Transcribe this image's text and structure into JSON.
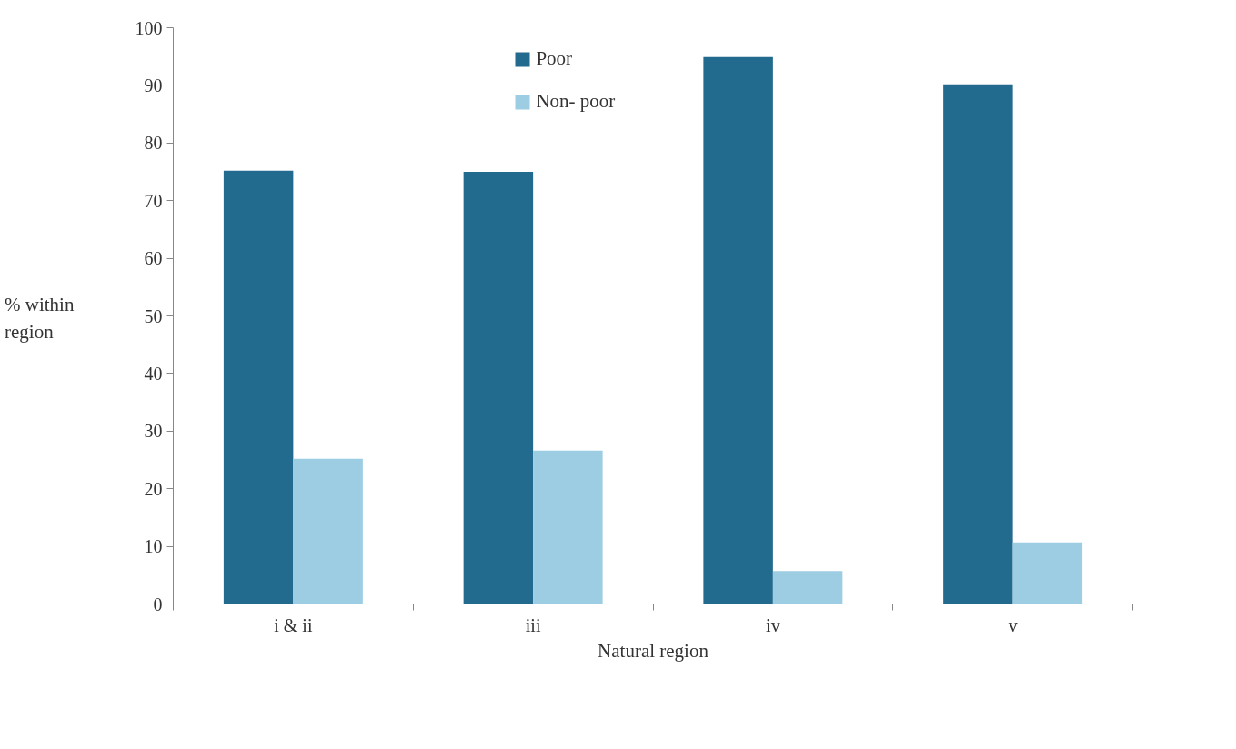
{
  "chart_data": {
    "type": "bar",
    "xlabel": "Natural region",
    "ylabel": "% within\nregion",
    "categories": [
      "i & ii",
      "iii",
      "iv",
      "v"
    ],
    "series": [
      {
        "name": "Poor",
        "color": "#236b8e",
        "values": [
          75.2,
          75.0,
          94.9,
          90.2
        ]
      },
      {
        "name": "Non- poor",
        "color": "#9dcde3",
        "values": [
          25.2,
          26.6,
          5.7,
          10.7
        ]
      }
    ],
    "ylim": [
      0,
      100
    ],
    "yticks": [
      0,
      10,
      20,
      30,
      40,
      50,
      60,
      70,
      80,
      90,
      100
    ],
    "grid": false,
    "legend": "top"
  }
}
